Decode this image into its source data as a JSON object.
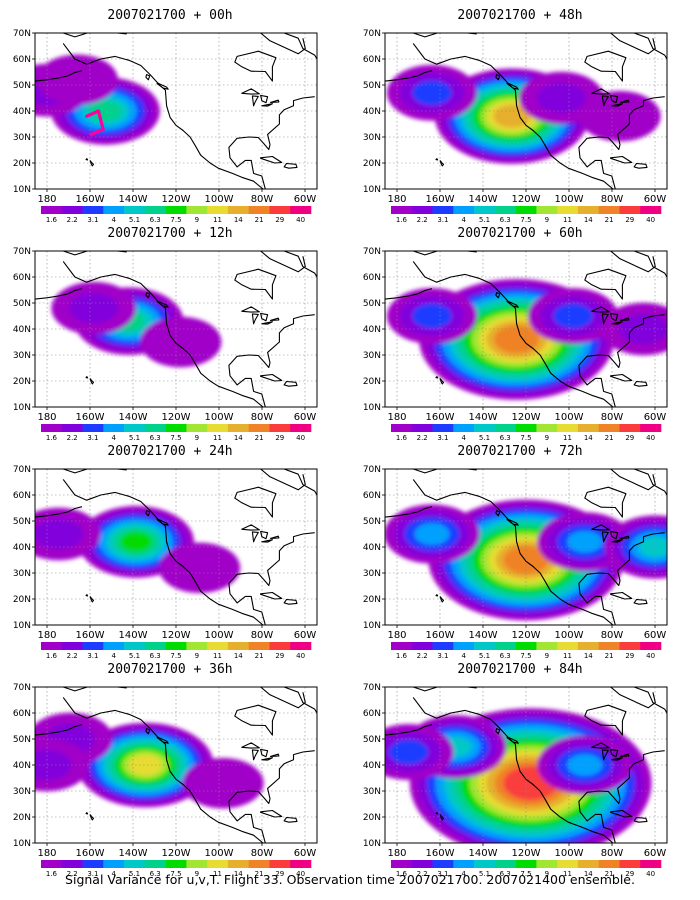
{
  "chart_data": {
    "type": "heatmap",
    "xlim": [
      "180",
      "60W"
    ],
    "ylim": [
      "10N",
      "70N"
    ],
    "x_ticks": [
      "180",
      "160W",
      "140W",
      "120W",
      "100W",
      "80W",
      "60W"
    ],
    "y_ticks": [
      "70N",
      "60N",
      "50N",
      "40N",
      "30N",
      "20N",
      "10N"
    ],
    "colorbar": {
      "levels": [
        "1.6",
        "2.2",
        "3.1",
        "4",
        "5.1",
        "6.3",
        "7.5",
        "9",
        "11",
        "14",
        "21",
        "29",
        "40"
      ],
      "colors": [
        "#a000c8",
        "#8200dc",
        "#1e3cff",
        "#00a0ff",
        "#00c8c8",
        "#00d28c",
        "#00dc00",
        "#a0e632",
        "#e6dc32",
        "#e6af2d",
        "#f08228",
        "#fa3c3c",
        "#f00082"
      ]
    },
    "panels": [
      {
        "title": "2007021700 + 00h",
        "lead_hours": 0,
        "blobs": [
          {
            "lon": -150,
            "lat": 40,
            "value": 6.3
          },
          {
            "lon": -175,
            "lat": 48,
            "value": 2.2
          },
          {
            "lon": -162,
            "lat": 52,
            "value": 1.6
          }
        ],
        "observations": [
          {
            "lon": -158,
            "lat": 38
          },
          {
            "lon": -153,
            "lat": 40
          },
          {
            "lon": -151,
            "lat": 33
          },
          {
            "lon": -156,
            "lat": 31
          }
        ]
      },
      {
        "title": "2007021700 + 12h",
        "lead_hours": 12,
        "blobs": [
          {
            "lon": -140,
            "lat": 43,
            "value": 6.3
          },
          {
            "lon": -155,
            "lat": 48,
            "value": 2.2
          },
          {
            "lon": -118,
            "lat": 35,
            "value": 1.6
          }
        ]
      },
      {
        "title": "2007021700 + 24h",
        "lead_hours": 24,
        "blobs": [
          {
            "lon": -137,
            "lat": 42,
            "value": 7.5
          },
          {
            "lon": -170,
            "lat": 45,
            "value": 2.2
          },
          {
            "lon": -110,
            "lat": 32,
            "value": 1.6
          }
        ]
      },
      {
        "title": "2007021700 + 36h",
        "lead_hours": 36,
        "blobs": [
          {
            "lon": -133,
            "lat": 40,
            "value": 11
          },
          {
            "lon": -165,
            "lat": 50,
            "value": 2.2
          },
          {
            "lon": -100,
            "lat": 33,
            "value": 1.6
          },
          {
            "lon": -175,
            "lat": 40,
            "value": 2.2
          }
        ]
      },
      {
        "title": "2007021700 + 48h",
        "lead_hours": 48,
        "blobs": [
          {
            "lon": -126,
            "lat": 38,
            "value": 14
          },
          {
            "lon": -160,
            "lat": 47,
            "value": 3.1
          },
          {
            "lon": -105,
            "lat": 45,
            "value": 2.2
          },
          {
            "lon": -80,
            "lat": 38,
            "value": 1.6
          }
        ]
      },
      {
        "title": "2007021700 + 60h",
        "lead_hours": 60,
        "blobs": [
          {
            "lon": -124,
            "lat": 36,
            "value": 21
          },
          {
            "lon": -160,
            "lat": 45,
            "value": 3.1
          },
          {
            "lon": -100,
            "lat": 45,
            "value": 3.1
          },
          {
            "lon": -70,
            "lat": 40,
            "value": 2.2
          }
        ]
      },
      {
        "title": "2007021700 + 72h",
        "lead_hours": 72,
        "blobs": [
          {
            "lon": -120,
            "lat": 35,
            "value": 21
          },
          {
            "lon": -160,
            "lat": 45,
            "value": 4
          },
          {
            "lon": -95,
            "lat": 42,
            "value": 4
          },
          {
            "lon": -65,
            "lat": 40,
            "value": 5.1
          }
        ]
      },
      {
        "title": "2007021700 + 84h",
        "lead_hours": 84,
        "blobs": [
          {
            "lon": -118,
            "lat": 33,
            "value": 29
          },
          {
            "lon": -150,
            "lat": 47,
            "value": 5.1
          },
          {
            "lon": -95,
            "lat": 40,
            "value": 4
          },
          {
            "lon": -170,
            "lat": 45,
            "value": 3.1
          }
        ]
      }
    ]
  },
  "caption": "Signal Variance for u,v,T. Flight 33. Observation time 2007021700. 2007021400 ensemble."
}
